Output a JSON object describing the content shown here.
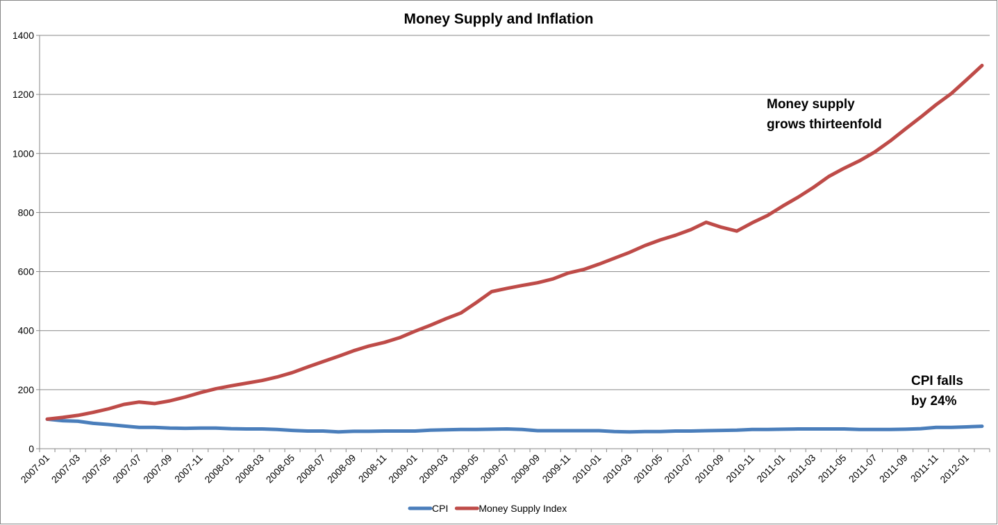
{
  "chart_data": {
    "type": "line",
    "title": "Money Supply and Inflation",
    "categories": [
      "2007-01",
      null,
      "2007-03",
      null,
      "2007-05",
      null,
      "2007-07",
      null,
      "2007-09",
      null,
      "2007-11",
      null,
      "2008-01",
      null,
      "2008-03",
      null,
      "2008-05",
      null,
      "2008-07",
      null,
      "2008-09",
      null,
      "2008-11",
      null,
      "2009-01",
      null,
      "2009-03",
      null,
      "2009-05",
      null,
      "2009-07",
      null,
      "2009-09",
      null,
      "2009-11",
      null,
      "2010-01",
      null,
      "2010-03",
      null,
      "2010-05",
      null,
      "2010-07",
      null,
      "2010-09",
      null,
      "2010-11",
      null,
      "2011-01",
      null,
      "2011-03",
      null,
      "2011-05",
      null,
      "2011-07",
      null,
      "2011-09",
      null,
      "2011-11",
      null,
      "2012-01",
      null
    ],
    "series": [
      {
        "name": "CPI",
        "color": "#4a7ebb",
        "values": [
          100,
          95,
          93,
          86,
          82,
          77,
          72,
          72,
          70,
          69,
          70,
          70,
          68,
          67,
          67,
          65,
          62,
          60,
          60,
          57,
          59,
          59,
          60,
          60,
          60,
          63,
          64,
          65,
          65,
          66,
          67,
          65,
          61,
          61,
          61,
          61,
          61,
          58,
          57,
          58,
          58,
          60,
          60,
          61,
          62,
          63,
          65,
          65,
          66,
          67,
          67,
          67,
          67,
          65,
          65,
          65,
          66,
          68,
          72,
          72,
          74,
          76
        ]
      },
      {
        "name": "Money Supply Index",
        "color": "#be4b48",
        "values": [
          100,
          106,
          113,
          123,
          135,
          150,
          158,
          153,
          162,
          175,
          190,
          203,
          213,
          222,
          231,
          243,
          258,
          277,
          295,
          313,
          332,
          348,
          360,
          376,
          398,
          418,
          440,
          460,
          495,
          532,
          543,
          553,
          562,
          575,
          595,
          607,
          625,
          645,
          665,
          688,
          707,
          723,
          742,
          767,
          750,
          737,
          765,
          790,
          822,
          852,
          885,
          922,
          950,
          975,
          1005,
          1042,
          1083,
          1123,
          1165,
          1203,
          1250,
          1298
        ]
      }
    ],
    "ylim": [
      0,
      1400
    ],
    "yticks": [
      0,
      200,
      400,
      600,
      800,
      1000,
      1200,
      1400
    ],
    "grid": true,
    "legend": "bottom",
    "annotations": [
      [
        "Money supply",
        "grows thirteenfold"
      ],
      [
        "CPI falls",
        "by 24%"
      ]
    ]
  }
}
